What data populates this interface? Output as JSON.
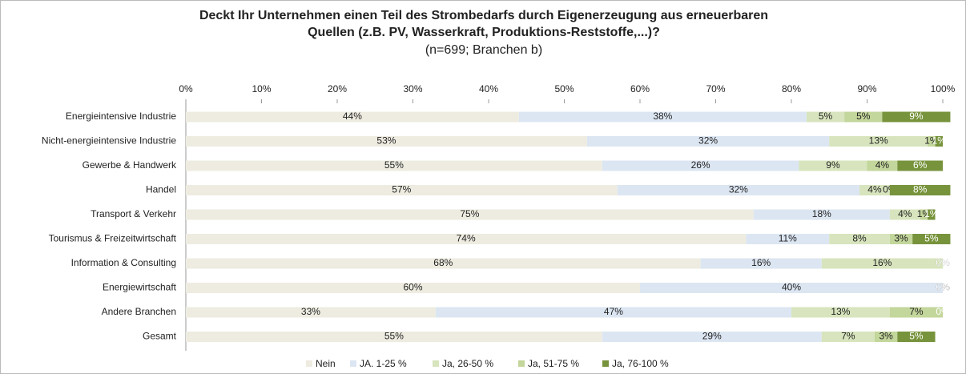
{
  "chart_data": {
    "type": "stacked_bar_horizontal",
    "title": [
      "Deckt Ihr Unternehmen einen Teil des Strombedarfs durch Eigenerzeugung aus erneuerbaren",
      "Quellen (z.B. PV, Wasserkraft, Produktions-Reststoffe,...)?"
    ],
    "subtitle": "(n=699; Branchen b)",
    "categories": [
      "Energieintensive Industrie",
      "Nicht-energieintensive Industrie",
      "Gewerbe & Handwerk",
      "Handel",
      "Transport & Verkehr",
      "Tourismus & Freizeitwirtschaft",
      "Information & Consulting",
      "Energiewirtschaft",
      "Andere Branchen",
      "Gesamt"
    ],
    "series": [
      {
        "name": "Nein",
        "color": "#eeece1",
        "values": [
          44,
          53,
          55,
          57,
          75,
          74,
          68,
          60,
          33,
          55
        ],
        "value_labels": [
          "44%",
          "53%",
          "55%",
          "57%",
          "75%",
          "74%",
          "68%",
          "60%",
          "33%",
          "55%"
        ]
      },
      {
        "name": "JA. 1-25 %",
        "color": "#dce6f2",
        "values": [
          38,
          32,
          26,
          32,
          18,
          11,
          16,
          40,
          47,
          29
        ],
        "value_labels": [
          "38%",
          "32%",
          "26%",
          "32%",
          "18%",
          "11%",
          "16%",
          "40%",
          "47%",
          "29%"
        ]
      },
      {
        "name": "Ja, 26-50 %",
        "color": "#d7e4bd",
        "values": [
          5,
          13,
          9,
          4,
          4,
          8,
          16,
          0,
          13,
          7
        ],
        "value_labels": [
          "5%",
          "13%",
          "9%",
          "4%",
          "4%",
          "8%",
          "16%",
          "0%",
          "13%",
          "7%"
        ]
      },
      {
        "name": "Ja, 51-75 %",
        "color": "#c3d69b",
        "values": [
          5,
          1,
          4,
          0,
          1,
          3,
          0,
          0,
          7,
          3
        ],
        "value_labels": [
          "5%",
          "1%",
          "4%",
          "0%",
          "1%",
          "3%",
          "0%",
          "0%",
          "7%",
          "3%"
        ]
      },
      {
        "name": "Ja, 76-100 %",
        "color": "#77933c",
        "values": [
          9,
          1,
          6,
          8,
          1,
          5,
          0,
          0,
          0,
          5
        ],
        "value_labels": [
          "9%",
          "1%",
          "6%",
          "8%",
          "1%",
          "5%",
          "0%",
          "0%",
          "0%",
          "5%"
        ]
      }
    ],
    "xlim": [
      0,
      100
    ],
    "xticks": [
      {
        "value": 0,
        "label": "0%"
      },
      {
        "value": 10,
        "label": "10%"
      },
      {
        "value": 20,
        "label": "20%"
      },
      {
        "value": 30,
        "label": "30%"
      },
      {
        "value": 40,
        "label": "40%"
      },
      {
        "value": 50,
        "label": "50%"
      },
      {
        "value": 60,
        "label": "60%"
      },
      {
        "value": 70,
        "label": "70%"
      },
      {
        "value": 80,
        "label": "80%"
      },
      {
        "value": 90,
        "label": "90%"
      },
      {
        "value": 100,
        "label": "100%"
      }
    ],
    "legend": "bottom"
  }
}
